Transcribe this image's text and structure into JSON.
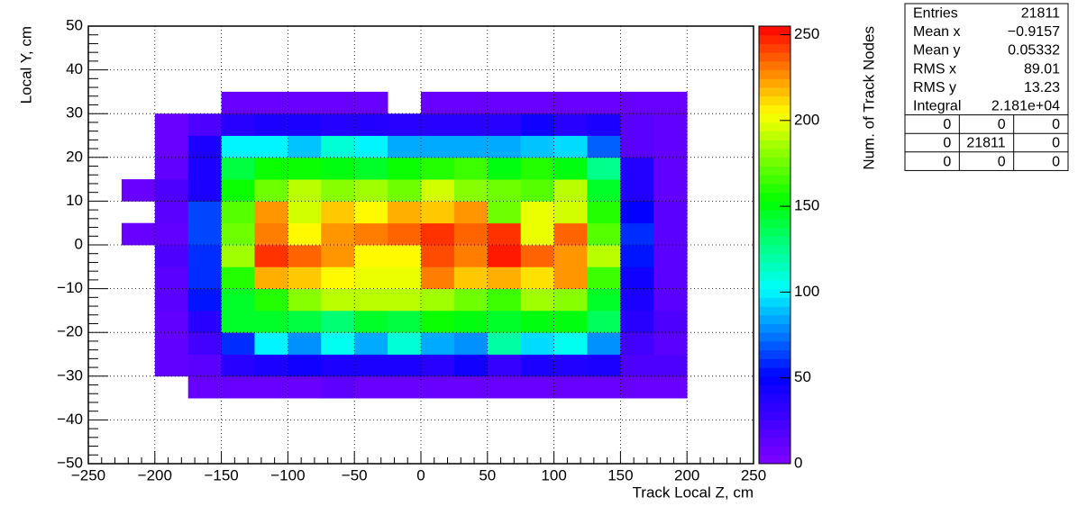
{
  "chart_data": {
    "type": "heatmap",
    "xlabel": "Track Local Z, cm",
    "ylabel": "Local Y, cm",
    "zlabel": "Num. of Track Nodes",
    "xlim": [
      -250,
      250
    ],
    "ylim": [
      -50,
      50
    ],
    "zlim": [
      0,
      255
    ],
    "xticks": [
      {
        "value": -250,
        "label": "−250"
      },
      {
        "value": -200,
        "label": "−200"
      },
      {
        "value": -150,
        "label": "−150"
      },
      {
        "value": -100,
        "label": "−100"
      },
      {
        "value": -50,
        "label": "−50"
      },
      0,
      50,
      100,
      150,
      200,
      250
    ],
    "yticks": [
      {
        "value": -50,
        "label": "−50"
      },
      {
        "value": -40,
        "label": "−40"
      },
      {
        "value": -30,
        "label": "−30"
      },
      {
        "value": -20,
        "label": "−20"
      },
      {
        "value": -10,
        "label": "−10"
      },
      0,
      10,
      20,
      30,
      40,
      50
    ],
    "zticks": [
      0,
      50,
      100,
      150,
      200,
      250
    ],
    "grid": true,
    "palette": [
      "#8000ff",
      "#0000ff",
      "#00ffff",
      "#00ff00",
      "#ffff00",
      "#ff0000"
    ],
    "xbins": [
      -225,
      -200,
      -175,
      -150,
      -125,
      -100,
      -75,
      -50,
      -25,
      0,
      25,
      50,
      75,
      100,
      125,
      150,
      175,
      200
    ],
    "ybins": [
      -35,
      -30,
      -25,
      -20,
      -15,
      -10,
      -5,
      0,
      5,
      10,
      15,
      20,
      25,
      30,
      35
    ],
    "z": [
      [
        null,
        null,
        10,
        10,
        10,
        10,
        14,
        10,
        10,
        10,
        10,
        10,
        10,
        10,
        10,
        10,
        10
      ],
      [
        null,
        12,
        15,
        35,
        40,
        45,
        40,
        40,
        40,
        35,
        45,
        30,
        40,
        38,
        40,
        20,
        20
      ],
      [
        null,
        12,
        25,
        60,
        100,
        80,
        105,
        85,
        110,
        85,
        80,
        120,
        95,
        105,
        80,
        25,
        15
      ],
      [
        null,
        12,
        35,
        145,
        145,
        140,
        130,
        145,
        140,
        155,
        150,
        145,
        150,
        150,
        135,
        35,
        20
      ],
      [
        null,
        15,
        55,
        145,
        160,
        180,
        190,
        190,
        190,
        185,
        175,
        165,
        185,
        180,
        145,
        40,
        15
      ],
      [
        null,
        15,
        60,
        160,
        220,
        215,
        205,
        200,
        200,
        230,
        215,
        220,
        210,
        225,
        165,
        45,
        15
      ],
      [
        null,
        20,
        60,
        185,
        245,
        235,
        225,
        205,
        205,
        240,
        230,
        250,
        235,
        225,
        190,
        55,
        15
      ],
      [
        10,
        12,
        65,
        175,
        230,
        205,
        225,
        230,
        235,
        245,
        235,
        245,
        200,
        235,
        170,
        60,
        15
      ],
      [
        null,
        15,
        65,
        170,
        225,
        195,
        215,
        205,
        220,
        215,
        225,
        175,
        200,
        195,
        160,
        50,
        15
      ],
      [
        10,
        20,
        40,
        155,
        175,
        190,
        180,
        185,
        175,
        195,
        180,
        175,
        170,
        190,
        145,
        38,
        12
      ],
      [
        null,
        12,
        40,
        140,
        155,
        155,
        150,
        145,
        155,
        160,
        165,
        150,
        160,
        150,
        125,
        38,
        12
      ],
      [
        null,
        10,
        40,
        100,
        100,
        90,
        110,
        100,
        85,
        85,
        85,
        85,
        90,
        95,
        70,
        15,
        12
      ],
      [
        null,
        10,
        20,
        35,
        40,
        40,
        37,
        38,
        35,
        35,
        35,
        35,
        45,
        35,
        40,
        15,
        12
      ],
      [
        null,
        null,
        null,
        10,
        10,
        10,
        10,
        10,
        null,
        10,
        10,
        10,
        10,
        10,
        10,
        10,
        10
      ]
    ],
    "stats": {
      "rows": [
        {
          "label": "Entries",
          "value": "21811"
        },
        {
          "label": "Mean x",
          "value": "−0.9157"
        },
        {
          "label": "Mean y",
          "value": "0.05332"
        },
        {
          "label": "RMS x",
          "value": "89.01"
        },
        {
          "label": "RMS y",
          "value": "13.23"
        },
        {
          "label": "Integral",
          "value": "2.181e+04"
        }
      ],
      "grid": [
        [
          "0",
          "0",
          "0"
        ],
        [
          "0",
          "21811",
          "0"
        ],
        [
          "0",
          "0",
          "0"
        ]
      ]
    }
  }
}
